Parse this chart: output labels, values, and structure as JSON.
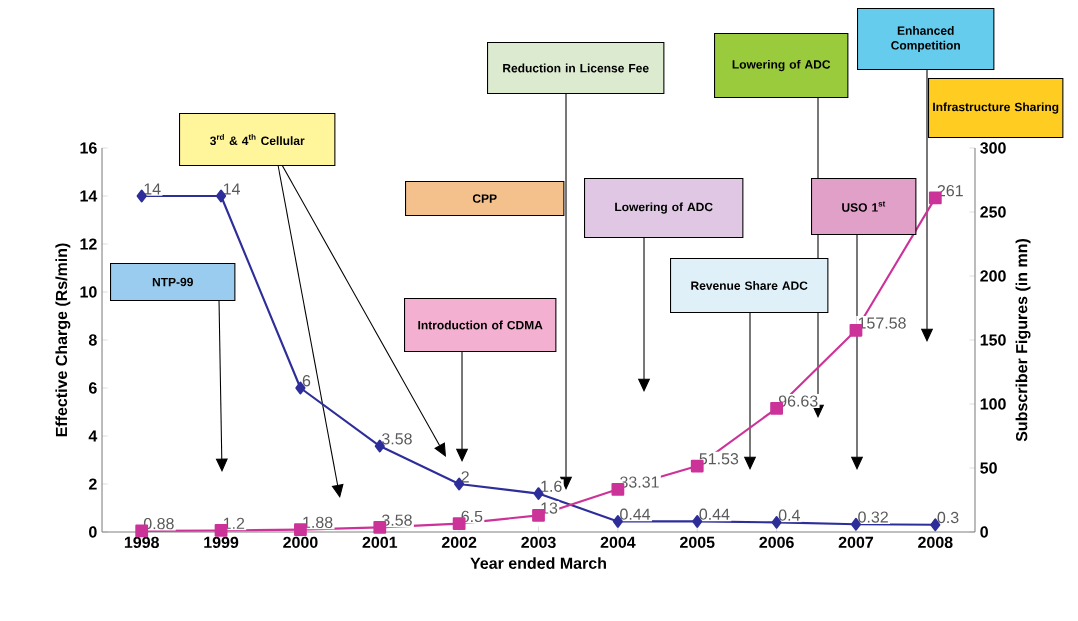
{
  "chart_data": {
    "type": "line",
    "xlabel": "Year ended March",
    "ylabel": "Effective Charge (Rs/min)",
    "y2label": "Subscriber Figures (in mn)",
    "categories": [
      "1998",
      "1999",
      "2000",
      "2001",
      "2002",
      "2003",
      "2004",
      "2005",
      "2006",
      "2007",
      "2008"
    ],
    "series": [
      {
        "color": "#2e2e9a",
        "marker": "diamond",
        "values": [
          14,
          14,
          6,
          3.58,
          2,
          1.6,
          0.44,
          0.44,
          0.4,
          0.32,
          0.3
        ],
        "value_labels": [
          "14",
          "14",
          "6",
          "3.58",
          "2",
          "1.6",
          "0.44",
          "0.44",
          "0.4",
          "0.32",
          "0.3"
        ]
      },
      {
        "color": "#cc3399",
        "marker": "square",
        "axis": "y2",
        "values": [
          0.88,
          1.2,
          1.88,
          3.58,
          6.5,
          13,
          33.31,
          51.53,
          96.63,
          157.58,
          261
        ],
        "value_labels": [
          "0.88",
          "1.2",
          "1.88",
          "3.58",
          "6.5",
          "13",
          "33.31",
          "51.53",
          "96.63",
          "157.58",
          "261"
        ]
      }
    ],
    "ylim": [
      0,
      16
    ],
    "yticks": [
      0,
      2,
      4,
      6,
      8,
      10,
      12,
      14,
      16
    ],
    "y2lim": [
      0,
      300
    ],
    "y2ticks": [
      0,
      50,
      100,
      150,
      200,
      250,
      300
    ],
    "grid": false,
    "annotations": [
      "NTP-99",
      "3$^{rd}$ & 4$^{th}$ Cellular",
      "CPP",
      "Reduction in License Fee",
      "Introduction of CDMA",
      "Lowering of ADC",
      "Revenue Share ADC",
      "Lowering of ADC",
      "USO 1$^{st}$",
      "Enhanced Competition",
      "Infrastructure Sharing"
    ]
  }
}
